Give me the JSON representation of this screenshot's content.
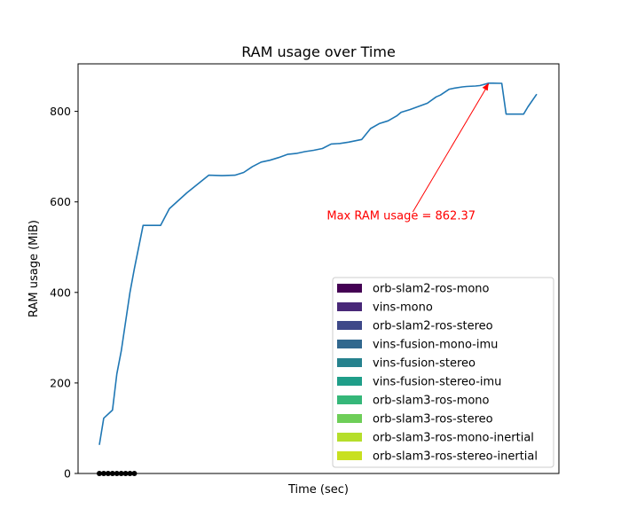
{
  "chart_data": {
    "type": "line",
    "title": "RAM usage over Time",
    "xlabel": "Time (sec)",
    "ylabel": "RAM usage (MiB)",
    "ylim": [
      0,
      905
    ],
    "xlim": [
      0,
      100
    ],
    "yticks": [
      0,
      200,
      400,
      600,
      800
    ],
    "x_ticks_shown": false,
    "grid": false,
    "legend_placement": "lower-right",
    "series": [
      {
        "color": "#1f77b4",
        "x": [
          0,
          1,
          3,
          4,
          5,
          7,
          8,
          10,
          12,
          14,
          16,
          20,
          25,
          28,
          31,
          33,
          35,
          37,
          39,
          41,
          43,
          45,
          47,
          49,
          51,
          53,
          55,
          57,
          58,
          60,
          62,
          64,
          66,
          68,
          69,
          71,
          73,
          75,
          77,
          78,
          80,
          81,
          83,
          84,
          86,
          87,
          89,
          90,
          92,
          93,
          95,
          97,
          98,
          100
        ],
        "values": [
          63,
          122,
          140,
          220,
          271,
          400,
          452,
          548,
          548,
          548,
          585,
          620,
          659,
          658,
          659,
          665,
          678,
          688,
          692,
          698,
          705,
          707,
          711,
          714,
          718,
          728,
          729,
          732,
          734,
          738,
          762,
          773,
          779,
          790,
          798,
          804,
          811,
          818,
          832,
          836,
          849,
          851,
          854,
          855,
          856,
          857,
          862.37,
          862.37,
          862,
          794,
          794,
          794,
          810,
          838
        ]
      }
    ],
    "legend": [
      {
        "name": "orb-slam2-ros-mono",
        "color": "#440154"
      },
      {
        "name": "vins-mono",
        "color": "#482878"
      },
      {
        "name": "orb-slam2-ros-stereo",
        "color": "#3e4989"
      },
      {
        "name": "vins-fusion-mono-imu",
        "color": "#31688e"
      },
      {
        "name": "vins-fusion-stereo",
        "color": "#26828e"
      },
      {
        "name": "vins-fusion-stereo-imu",
        "color": "#1f9e89"
      },
      {
        "name": "orb-slam3-ros-mono",
        "color": "#35b779"
      },
      {
        "name": "orb-slam3-ros-stereo",
        "color": "#6ece58"
      },
      {
        "name": "orb-slam3-ros-mono-inertial",
        "color": "#b5de2b"
      },
      {
        "name": "orb-slam3-ros-stereo-inertial",
        "color": "#c8e020"
      }
    ],
    "baseline_markers": {
      "x": [
        0,
        1,
        2,
        3,
        4,
        5,
        6,
        7,
        8
      ],
      "y": 0,
      "color": "#000000"
    },
    "annotation": {
      "text": "Max RAM usage = 862.37",
      "color": "#ff0000",
      "point": {
        "x": 89,
        "y": 862.37
      },
      "text_pos": {
        "x": 52,
        "y": 570
      }
    }
  }
}
